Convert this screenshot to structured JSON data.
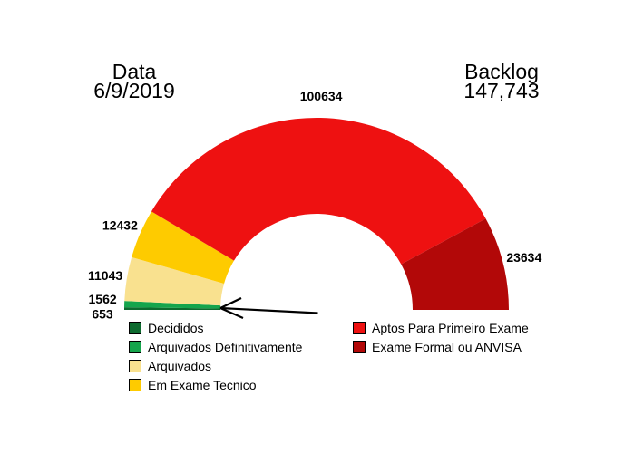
{
  "header": {
    "date_label": "Data",
    "date_value": "6/9/2019",
    "backlog_label": "Backlog",
    "backlog_value": "147,743"
  },
  "chart_data": {
    "type": "pie",
    "variant": "semicircle_donut_gauge",
    "background": "#ffffff",
    "start_angle_deg": 180,
    "end_angle_deg": 0,
    "value_labels_shown": true,
    "segments": [
      {
        "name": "Decididos",
        "value": 653,
        "color": "#0d6b2f",
        "legend_column": "left"
      },
      {
        "name": "Arquivados Definitivamente",
        "value": 1562,
        "color": "#15a54c",
        "legend_column": "left"
      },
      {
        "name": "Arquivados",
        "value": 11043,
        "color": "#f9e18f",
        "legend_column": "left"
      },
      {
        "name": "Em Exame Tecnico",
        "value": 12432,
        "color": "#fecb00",
        "legend_column": "left"
      },
      {
        "name": "Aptos Para Primeiro Exame",
        "value": 100634,
        "color": "#ee1111",
        "legend_column": "right"
      },
      {
        "name": "Exame Formal ou ANVISA",
        "value": 23634,
        "color": "#b20808",
        "legend_column": "right"
      }
    ],
    "legend": {
      "position": "bottom",
      "columns": {
        "left": [
          "Decididos",
          "Arquivados Definitivamente",
          "Arquivados",
          "Em Exame Tecnico"
        ],
        "right": [
          "Aptos Para Primeiro Exame",
          "Exame Formal ou ANVISA"
        ]
      }
    },
    "annotations": [
      {
        "type": "arrow",
        "description": "Black arrow pointing left at the thin green segments (Decididos / Arquivados Definitivamente) at the lower-left end of the gauge"
      }
    ]
  }
}
